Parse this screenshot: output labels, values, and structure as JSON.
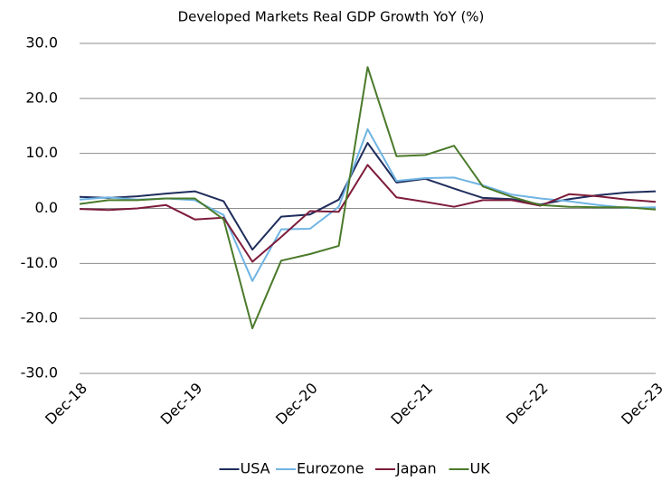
{
  "chart_data": {
    "type": "line",
    "title": "Developed Markets Real GDP Growth YoY (%)",
    "categories": [
      "Dec-18",
      null,
      null,
      null,
      "Dec-19",
      null,
      null,
      null,
      "Dec-20",
      null,
      null,
      null,
      "Dec-21",
      null,
      null,
      null,
      "Dec-22",
      null,
      null,
      null,
      "Dec-23"
    ],
    "series": [
      {
        "name": "USA",
        "color": "#1f2d5c",
        "values": [
          2.1,
          1.9,
          2.2,
          2.7,
          3.1,
          1.3,
          -7.5,
          -1.5,
          -1.1,
          1.6,
          11.9,
          4.7,
          5.4,
          3.6,
          1.9,
          1.7,
          0.7,
          1.7,
          2.4,
          2.9,
          3.1
        ]
      },
      {
        "name": "Eurozone",
        "color": "#6fb4e3",
        "values": [
          1.6,
          2.0,
          1.6,
          1.8,
          1.5,
          -1.2,
          -13.2,
          -3.8,
          -3.7,
          0.3,
          14.4,
          5.0,
          5.5,
          5.6,
          4.2,
          2.5,
          1.8,
          1.3,
          0.6,
          0.1,
          0.2
        ]
      },
      {
        "name": "Japan",
        "color": "#7d1c3a",
        "values": [
          -0.1,
          -0.3,
          0.0,
          0.6,
          -2.0,
          -1.7,
          -9.7,
          -5.2,
          -0.5,
          -0.6,
          7.9,
          2.0,
          1.2,
          0.3,
          1.5,
          1.5,
          0.5,
          2.6,
          2.2,
          1.6,
          1.2
        ]
      },
      {
        "name": "UK",
        "color": "#4a7a2a",
        "values": [
          0.8,
          1.5,
          1.5,
          1.8,
          1.8,
          -2.0,
          -21.8,
          -9.5,
          -8.3,
          -6.8,
          25.7,
          9.5,
          9.7,
          11.4,
          4.0,
          2.1,
          0.6,
          0.3,
          0.2,
          0.2,
          -0.2
        ]
      }
    ],
    "ylim": [
      -30,
      30
    ],
    "yticks": [
      {
        "value": -30,
        "label": "-30.0"
      },
      {
        "value": -20,
        "label": "-20.0"
      },
      {
        "value": -10,
        "label": "-10.0"
      },
      {
        "value": 0,
        "label": "0.0"
      },
      {
        "value": 10,
        "label": "10.0"
      },
      {
        "value": 20,
        "label": "20.0"
      },
      {
        "value": 30,
        "label": "30.0"
      }
    ],
    "grid": true,
    "legend": "bottom"
  }
}
